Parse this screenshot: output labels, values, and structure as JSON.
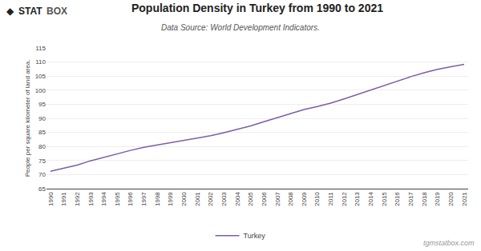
{
  "chart_data": {
    "type": "line",
    "title": "Population Density in Turkey from 1990 to 2021",
    "subtitle": "Data Source: World Development Indicators.",
    "ylabel": "People per square kilometer of land area.",
    "annotations": [
      "◆",
      "STAT",
      "BOX",
      "tgmstatbox.com"
    ],
    "x": [
      1990,
      1991,
      1992,
      1993,
      1994,
      1995,
      1996,
      1997,
      1998,
      1999,
      2000,
      2001,
      2002,
      2003,
      2004,
      2005,
      2006,
      2007,
      2008,
      2009,
      2010,
      2011,
      2012,
      2013,
      2014,
      2015,
      2016,
      2017,
      2018,
      2019,
      2020,
      2021
    ],
    "series": [
      {
        "name": "Turkey",
        "color": "#7B5EA7",
        "values": [
          71.2,
          72.3,
          73.4,
          74.9,
          76.2,
          77.4,
          78.6,
          79.7,
          80.5,
          81.2,
          82.0,
          82.9,
          83.8,
          84.9,
          86.0,
          87.3,
          88.8,
          90.2,
          91.8,
          93.1,
          94.2,
          95.4,
          96.9,
          98.5,
          100.1,
          101.8,
          103.2,
          104.8,
          106.2,
          107.4,
          108.3,
          109.2
        ]
      }
    ],
    "xlim": [
      1989.7,
      2021.3
    ],
    "xticks": [
      1990,
      1991,
      1992,
      1993,
      1994,
      1995,
      1996,
      1997,
      1998,
      1999,
      2000,
      2001,
      2002,
      2003,
      2004,
      2005,
      2006,
      2007,
      2008,
      2009,
      2010,
      2011,
      2012,
      2013,
      2014,
      2015,
      2016,
      2017,
      2018,
      2019,
      2020,
      2021
    ],
    "ylim": [
      65,
      115
    ],
    "yticks": [
      65,
      70,
      75,
      80,
      85,
      90,
      95,
      100,
      105,
      110,
      115
    ],
    "grid": true,
    "legend": "bottom"
  }
}
